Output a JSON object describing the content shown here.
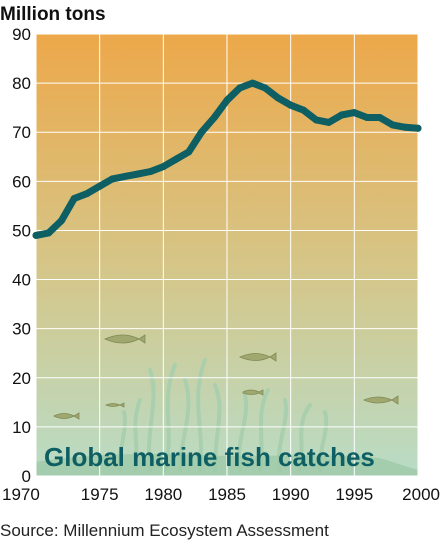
{
  "chart_data": {
    "type": "line",
    "ylabel": "Million tons",
    "title_in_chart": "Global marine fish catches",
    "source": "Source: Millennium Ecosystem Assessment",
    "xlim": [
      1970,
      2000
    ],
    "ylim": [
      0,
      90
    ],
    "x_ticks": [
      1970,
      1975,
      1980,
      1985,
      1990,
      1995,
      2000
    ],
    "y_ticks": [
      0,
      10,
      20,
      30,
      40,
      50,
      60,
      70,
      80,
      90
    ],
    "grid": true,
    "background_gradient": [
      "#eda84a",
      "#b9dcc6"
    ],
    "line_color": "#0e5f63",
    "title_color": "#0e5f63",
    "series": [
      {
        "x": [
          1970,
          1971,
          1972,
          1973,
          1974,
          1975,
          1976,
          1977,
          1978,
          1979,
          1980,
          1981,
          1982,
          1983,
          1984,
          1985,
          1986,
          1987,
          1988,
          1989,
          1990,
          1991,
          1992,
          1993,
          1994,
          1995,
          1996,
          1997,
          1998,
          1999,
          2000
        ],
        "values": [
          49,
          49.5,
          52,
          56.5,
          57.5,
          59,
          60.5,
          61,
          61.5,
          62,
          63,
          64.5,
          66,
          70,
          73,
          76.5,
          79,
          80,
          79,
          77,
          75.5,
          74.5,
          72.5,
          72,
          73.5,
          74,
          73,
          73,
          71.5,
          71,
          70.8
        ]
      }
    ]
  }
}
